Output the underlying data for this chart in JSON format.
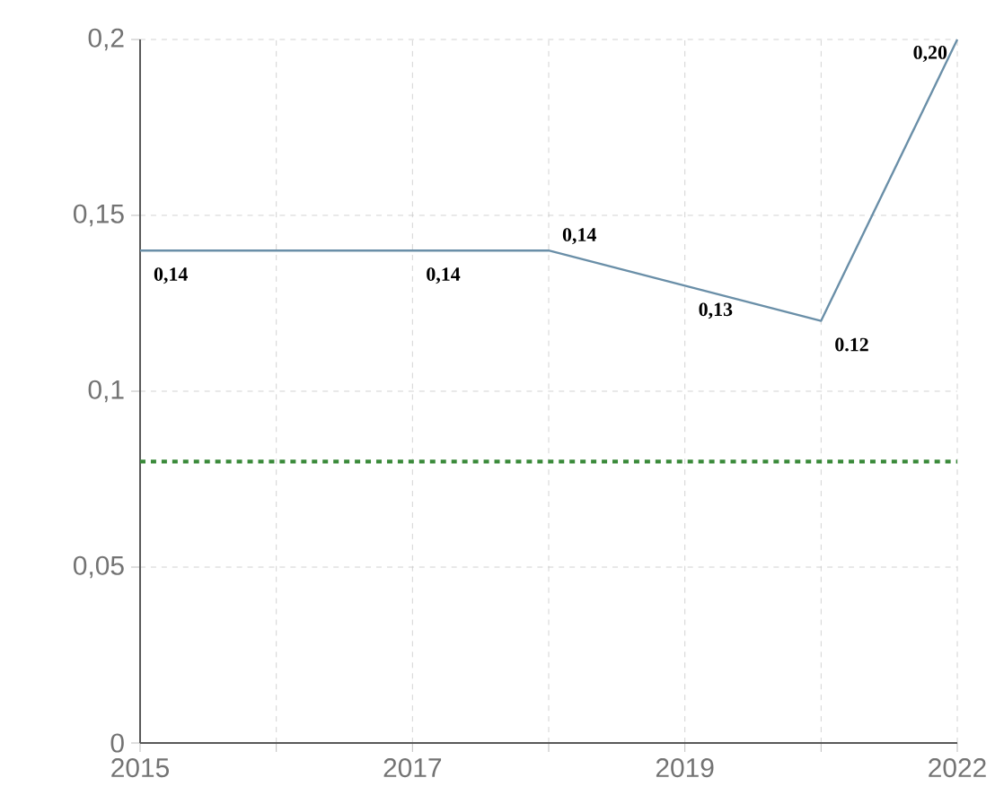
{
  "chart_data": {
    "type": "line",
    "categories": [
      "2015",
      null,
      "2017",
      null,
      "2019",
      null,
      "2022"
    ],
    "series": [
      {
        "color": "#6a8fa8",
        "values": [
          0.14,
          0.14,
          0.14,
          0.14,
          0.13,
          0.12,
          0.2
        ],
        "value_labels": [
          "0,14",
          null,
          "0,14",
          "0,14",
          "0,13",
          "0.12",
          "0,20"
        ]
      }
    ],
    "ylim": [
      0,
      0.2
    ],
    "yticks": [
      {
        "value": 0,
        "label": "0"
      },
      {
        "value": 0.05,
        "label": "0,05"
      },
      {
        "value": 0.1,
        "label": "0,1"
      },
      {
        "value": 0.15,
        "label": "0,15"
      },
      {
        "value": 0.2,
        "label": "0,2"
      }
    ],
    "ref_lines": [
      {
        "axis": "y",
        "value": 0.08,
        "color": "#3a8a3a",
        "line_style": "dotted"
      }
    ],
    "grid": true,
    "marker": "none",
    "line_style": "solid"
  }
}
